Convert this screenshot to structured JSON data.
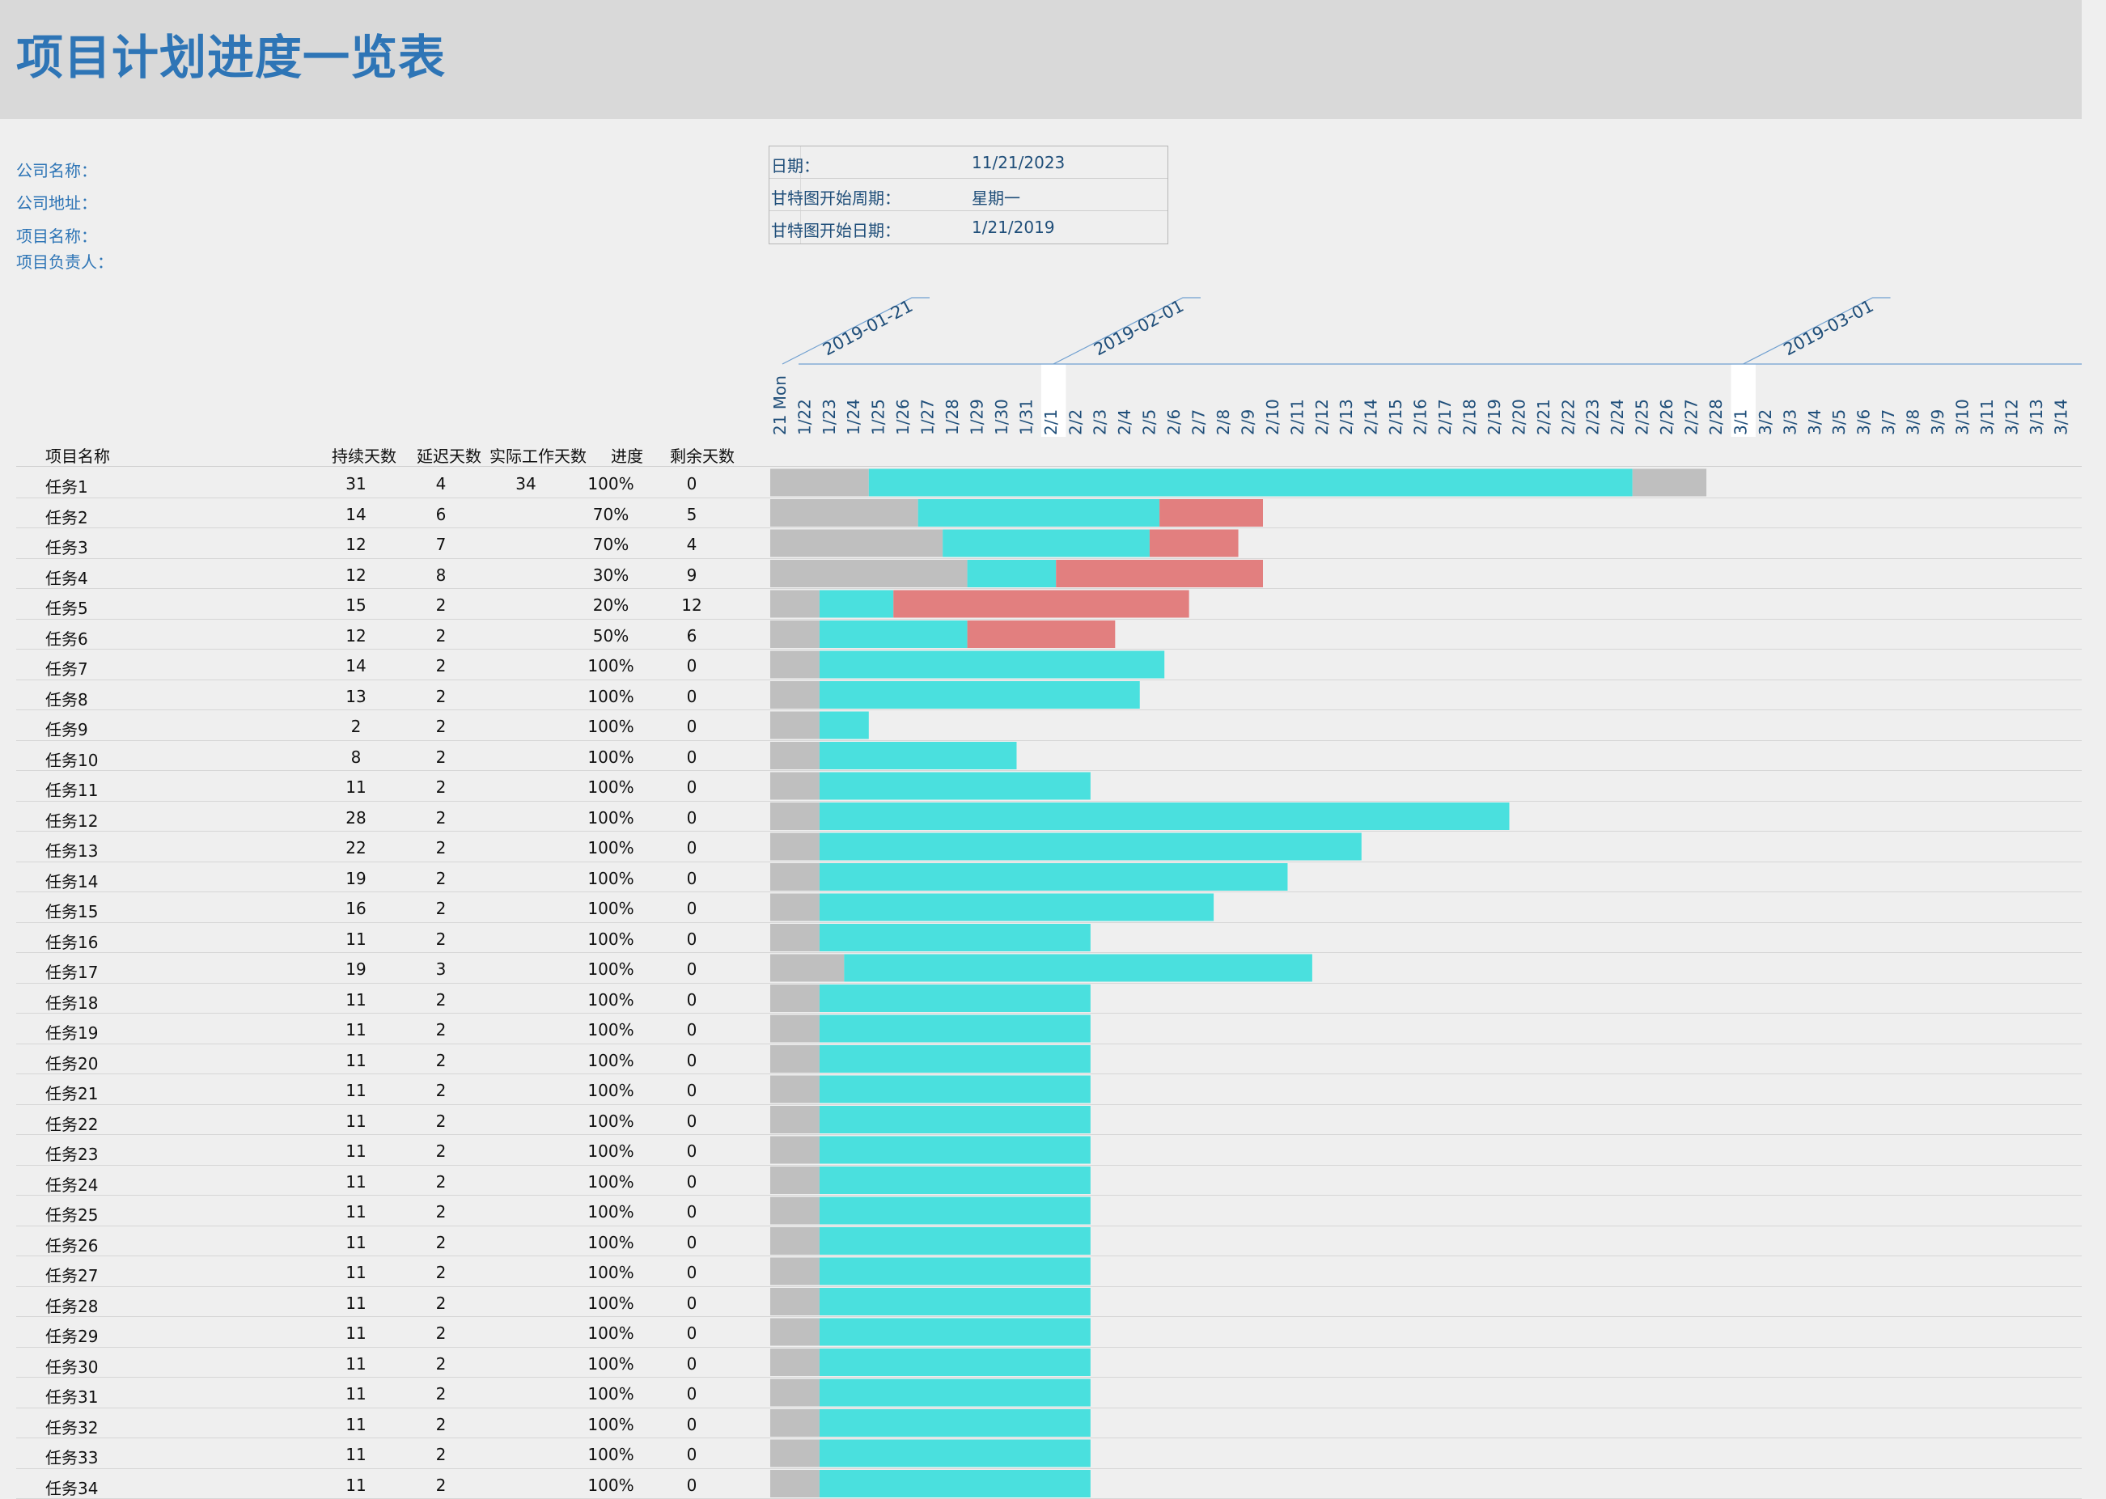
{
  "title": "项目计划进度一览表",
  "company": {
    "name_label": "公司名称：",
    "address_label": "公司地址：",
    "project_label": "项目名称：",
    "owner_label": "项目负责人："
  },
  "info": {
    "date_label": "日期：",
    "date_value": "11/21/2023",
    "week_label": "甘特图开始周期：",
    "week_value": "星期一",
    "start_label": "甘特图开始日期：",
    "start_value": "1/21/2019"
  },
  "columns": {
    "name": "项目名称",
    "duration": "持续天数",
    "delay": "延迟天数",
    "actual": "实际工作天数",
    "progress": "进度",
    "remaining": "剩余天数"
  },
  "colors": {
    "delay": "#bfbfbf",
    "done": "#4ae0de",
    "remaining": "#e27f7f",
    "header_blue": "#2e75b6",
    "axis_blue": "#1f4e79"
  },
  "chart_data": {
    "type": "bar",
    "subtype": "gantt",
    "x_start": "2019-01-21",
    "month_labels": [
      "2019-01-21",
      "2019-02-01",
      "2019-03-01"
    ],
    "day_ticks": [
      "21 Mon",
      "1/22",
      "1/23",
      "1/24",
      "1/25",
      "1/26",
      "1/27",
      "1/28",
      "1/29",
      "1/30",
      "1/31",
      "2/1",
      "2/2",
      "2/3",
      "2/4",
      "2/5",
      "2/6",
      "2/7",
      "2/8",
      "2/9",
      "2/10",
      "2/11",
      "2/12",
      "2/13",
      "2/14",
      "2/15",
      "2/16",
      "2/17",
      "2/18",
      "2/19",
      "2/20",
      "2/21",
      "2/22",
      "2/23",
      "2/24",
      "2/25",
      "2/26",
      "2/27",
      "2/28",
      "3/1",
      "3/2",
      "3/3",
      "3/4",
      "3/5",
      "3/6",
      "3/7",
      "3/8",
      "3/9",
      "3/10",
      "3/11",
      "3/12",
      "3/13",
      "3/14"
    ],
    "tasks": [
      {
        "name": "任务1",
        "duration": 31,
        "delay": 4,
        "actual": "34",
        "progress": "100%",
        "remaining": 0,
        "pct": 1.0,
        "trail": 3
      },
      {
        "name": "任务2",
        "duration": 14,
        "delay": 6,
        "actual": "",
        "progress": "70%",
        "remaining": 5,
        "pct": 0.7,
        "trail": 0
      },
      {
        "name": "任务3",
        "duration": 12,
        "delay": 7,
        "actual": "",
        "progress": "70%",
        "remaining": 4,
        "pct": 0.7,
        "trail": 0
      },
      {
        "name": "任务4",
        "duration": 12,
        "delay": 8,
        "actual": "",
        "progress": "30%",
        "remaining": 9,
        "pct": 0.3,
        "trail": 0
      },
      {
        "name": "任务5",
        "duration": 15,
        "delay": 2,
        "actual": "",
        "progress": "20%",
        "remaining": 12,
        "pct": 0.2,
        "trail": 0
      },
      {
        "name": "任务6",
        "duration": 12,
        "delay": 2,
        "actual": "",
        "progress": "50%",
        "remaining": 6,
        "pct": 0.5,
        "trail": 0
      },
      {
        "name": "任务7",
        "duration": 14,
        "delay": 2,
        "actual": "",
        "progress": "100%",
        "remaining": 0,
        "pct": 1.0,
        "trail": 0
      },
      {
        "name": "任务8",
        "duration": 13,
        "delay": 2,
        "actual": "",
        "progress": "100%",
        "remaining": 0,
        "pct": 1.0,
        "trail": 0
      },
      {
        "name": "任务9",
        "duration": 2,
        "delay": 2,
        "actual": "",
        "progress": "100%",
        "remaining": 0,
        "pct": 1.0,
        "trail": 0
      },
      {
        "name": "任务10",
        "duration": 8,
        "delay": 2,
        "actual": "",
        "progress": "100%",
        "remaining": 0,
        "pct": 1.0,
        "trail": 0
      },
      {
        "name": "任务11",
        "duration": 11,
        "delay": 2,
        "actual": "",
        "progress": "100%",
        "remaining": 0,
        "pct": 1.0,
        "trail": 0
      },
      {
        "name": "任务12",
        "duration": 28,
        "delay": 2,
        "actual": "",
        "progress": "100%",
        "remaining": 0,
        "pct": 1.0,
        "trail": 0
      },
      {
        "name": "任务13",
        "duration": 22,
        "delay": 2,
        "actual": "",
        "progress": "100%",
        "remaining": 0,
        "pct": 1.0,
        "trail": 0
      },
      {
        "name": "任务14",
        "duration": 19,
        "delay": 2,
        "actual": "",
        "progress": "100%",
        "remaining": 0,
        "pct": 1.0,
        "trail": 0
      },
      {
        "name": "任务15",
        "duration": 16,
        "delay": 2,
        "actual": "",
        "progress": "100%",
        "remaining": 0,
        "pct": 1.0,
        "trail": 0
      },
      {
        "name": "任务16",
        "duration": 11,
        "delay": 2,
        "actual": "",
        "progress": "100%",
        "remaining": 0,
        "pct": 1.0,
        "trail": 0
      },
      {
        "name": "任务17",
        "duration": 19,
        "delay": 3,
        "actual": "",
        "progress": "100%",
        "remaining": 0,
        "pct": 1.0,
        "trail": 0
      },
      {
        "name": "任务18",
        "duration": 11,
        "delay": 2,
        "actual": "",
        "progress": "100%",
        "remaining": 0,
        "pct": 1.0,
        "trail": 0
      },
      {
        "name": "任务19",
        "duration": 11,
        "delay": 2,
        "actual": "",
        "progress": "100%",
        "remaining": 0,
        "pct": 1.0,
        "trail": 0
      },
      {
        "name": "任务20",
        "duration": 11,
        "delay": 2,
        "actual": "",
        "progress": "100%",
        "remaining": 0,
        "pct": 1.0,
        "trail": 0
      },
      {
        "name": "任务21",
        "duration": 11,
        "delay": 2,
        "actual": "",
        "progress": "100%",
        "remaining": 0,
        "pct": 1.0,
        "trail": 0
      },
      {
        "name": "任务22",
        "duration": 11,
        "delay": 2,
        "actual": "",
        "progress": "100%",
        "remaining": 0,
        "pct": 1.0,
        "trail": 0
      },
      {
        "name": "任务23",
        "duration": 11,
        "delay": 2,
        "actual": "",
        "progress": "100%",
        "remaining": 0,
        "pct": 1.0,
        "trail": 0
      },
      {
        "name": "任务24",
        "duration": 11,
        "delay": 2,
        "actual": "",
        "progress": "100%",
        "remaining": 0,
        "pct": 1.0,
        "trail": 0
      },
      {
        "name": "任务25",
        "duration": 11,
        "delay": 2,
        "actual": "",
        "progress": "100%",
        "remaining": 0,
        "pct": 1.0,
        "trail": 0
      },
      {
        "name": "任务26",
        "duration": 11,
        "delay": 2,
        "actual": "",
        "progress": "100%",
        "remaining": 0,
        "pct": 1.0,
        "trail": 0
      },
      {
        "name": "任务27",
        "duration": 11,
        "delay": 2,
        "actual": "",
        "progress": "100%",
        "remaining": 0,
        "pct": 1.0,
        "trail": 0
      },
      {
        "name": "任务28",
        "duration": 11,
        "delay": 2,
        "actual": "",
        "progress": "100%",
        "remaining": 0,
        "pct": 1.0,
        "trail": 0
      },
      {
        "name": "任务29",
        "duration": 11,
        "delay": 2,
        "actual": "",
        "progress": "100%",
        "remaining": 0,
        "pct": 1.0,
        "trail": 0
      },
      {
        "name": "任务30",
        "duration": 11,
        "delay": 2,
        "actual": "",
        "progress": "100%",
        "remaining": 0,
        "pct": 1.0,
        "trail": 0
      },
      {
        "name": "任务31",
        "duration": 11,
        "delay": 2,
        "actual": "",
        "progress": "100%",
        "remaining": 0,
        "pct": 1.0,
        "trail": 0
      },
      {
        "name": "任务32",
        "duration": 11,
        "delay": 2,
        "actual": "",
        "progress": "100%",
        "remaining": 0,
        "pct": 1.0,
        "trail": 0
      },
      {
        "name": "任务33",
        "duration": 11,
        "delay": 2,
        "actual": "",
        "progress": "100%",
        "remaining": 0,
        "pct": 1.0,
        "trail": 0
      },
      {
        "name": "任务34",
        "duration": 11,
        "delay": 2,
        "actual": "",
        "progress": "100%",
        "remaining": 0,
        "pct": 1.0,
        "trail": 0
      }
    ]
  }
}
